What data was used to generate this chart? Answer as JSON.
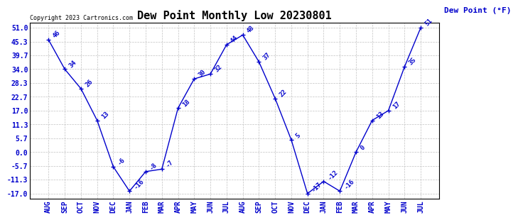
{
  "title": "Dew Point Monthly Low 20230801",
  "ylabel": "Dew Point (°F)",
  "copyright": "Copyright 2023 Cartronics.com",
  "months": [
    "AUG",
    "SEP",
    "OCT",
    "NOV",
    "DEC",
    "JAN",
    "FEB",
    "MAR",
    "APR",
    "MAY",
    "JUN",
    "JUL",
    "AUG",
    "SEP",
    "OCT",
    "NOV",
    "DEC",
    "JAN",
    "FEB",
    "MAR",
    "APR",
    "MAY",
    "JUN",
    "JUL"
  ],
  "values": [
    46,
    34,
    26,
    13,
    -6,
    -16,
    -8,
    -7,
    18,
    30,
    32,
    44,
    48,
    37,
    22,
    5,
    -17,
    -12,
    -16,
    0,
    13,
    17,
    35,
    51
  ],
  "ylim": [
    -19.0,
    53.0
  ],
  "yticks": [
    -17.0,
    -11.3,
    -5.7,
    0.0,
    5.7,
    11.3,
    17.0,
    22.7,
    28.3,
    34.0,
    39.7,
    45.3,
    51.0
  ],
  "ytick_labels": [
    "-17.0",
    "-11.3",
    "-5.7",
    "0.0",
    "5.7",
    "11.3",
    "17.0",
    "22.7",
    "28.3",
    "34.0",
    "39.7",
    "45.3",
    "51.0"
  ],
  "line_color": "#0000cc",
  "marker_color": "#0000cc",
  "background_color": "#ffffff",
  "grid_color": "#bbbbbb",
  "title_fontsize": 11,
  "label_fontsize": 7,
  "annotation_fontsize": 6.5,
  "copyright_fontsize": 6,
  "ylabel_fontsize": 8
}
